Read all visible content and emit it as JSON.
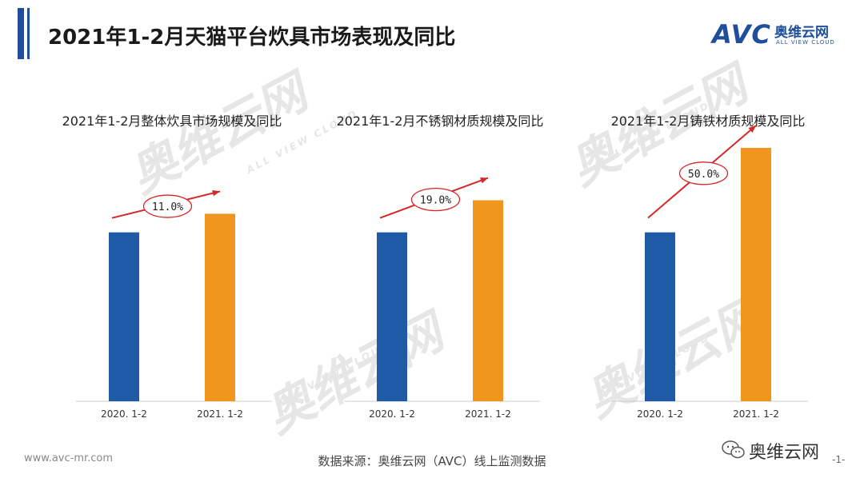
{
  "header": {
    "title": "2021年1-2月天猫平台炊具市场表现及同比",
    "logo_mark": "AVC",
    "logo_cn": "奥维云网",
    "logo_en": "ALL VIEW CLOUD"
  },
  "colors": {
    "bar_2020": "#1f5aa6",
    "bar_2021": "#f0961e",
    "arrow": "#d62828",
    "accent": "#1f4e9b"
  },
  "chart_data": [
    {
      "type": "bar",
      "title": "2021年1-2月整体炊具市场规模及同比",
      "categories": [
        "2020. 1-2",
        "2021. 1-2"
      ],
      "values": [
        100,
        111
      ],
      "growth_label": "11.0%"
    },
    {
      "type": "bar",
      "title": "2021年1-2月不锈钢材质规模及同比",
      "categories": [
        "2020. 1-2",
        "2021. 1-2"
      ],
      "values": [
        100,
        119
      ],
      "growth_label": "19.0%"
    },
    {
      "type": "bar",
      "title": "2021年1-2月铸铁材质规模及同比",
      "categories": [
        "2020. 1-2",
        "2021. 1-2"
      ],
      "values": [
        100,
        150
      ],
      "growth_label": "50.0%"
    }
  ],
  "footer": {
    "url": "www.avc-mr.com",
    "source": "数据来源：奥维云网（AVC）线上监测数据",
    "wechat": "奥维云网",
    "page": "-1-"
  }
}
